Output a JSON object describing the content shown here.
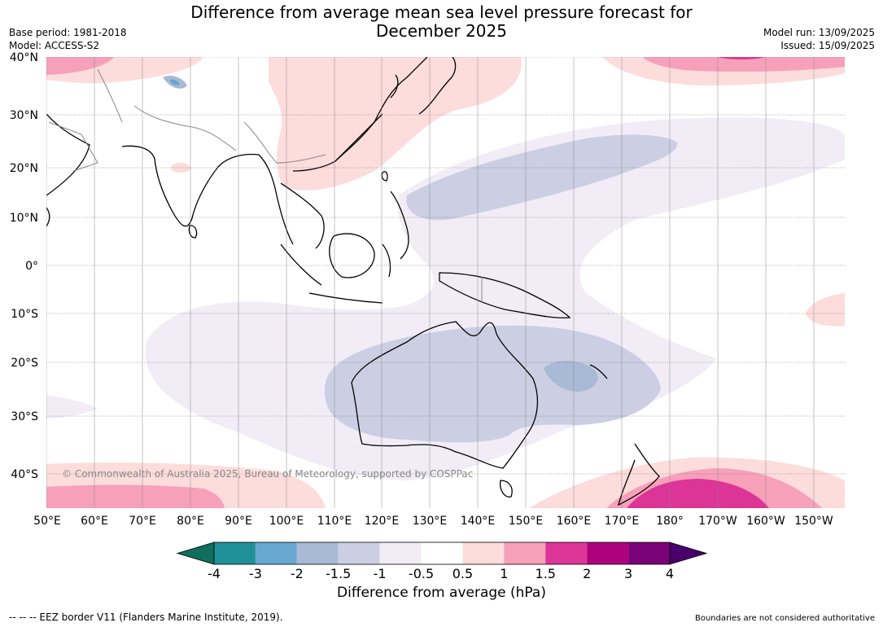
{
  "title_line1": "Difference from average mean sea level pressure forecast for",
  "title_line2": "December 2025",
  "meta_left": {
    "base_period": "Base period: 1981-2018",
    "model": "Model: ACCESS-S2"
  },
  "meta_right": {
    "model_run": "Model run: 13/09/2025",
    "issued": "Issued: 15/09/2025"
  },
  "lat_labels": [
    "40°N",
    "30°N",
    "20°N",
    "10°N",
    "0°",
    "10°S",
    "20°S",
    "30°S",
    "40°S"
  ],
  "lon_labels": [
    "50°E",
    "60°E",
    "70°E",
    "80°E",
    "90°E",
    "100°E",
    "110°E",
    "120°E",
    "130°E",
    "140°E",
    "150°E",
    "160°E",
    "170°E",
    "180°",
    "170°W",
    "160°W",
    "150°W"
  ],
  "copyright": "© Commonwealth of Australia 2025, Bureau of Meteorology, supported by COSPPac",
  "colorbar": {
    "ticks": [
      "-4",
      "-3",
      "-2",
      "-1.5",
      "-1",
      "-0.5",
      "0.5",
      "1",
      "1.5",
      "2",
      "3",
      "4"
    ],
    "colors": [
      "#0f6e5e",
      "#1f9098",
      "#68a8d0",
      "#a9bad6",
      "#cccfe3",
      "#f1ecf6",
      "#ffffff",
      "#fddcdc",
      "#f7a0b9",
      "#dd3497",
      "#ae017e",
      "#7a0177",
      "#49006a"
    ],
    "label": "Difference from average (hPa)"
  },
  "footer_left": "--  --  -- EEZ border V11 (Flanders Marine Institute, 2019).",
  "footer_right": "Boundaries are not considered authoritative"
}
